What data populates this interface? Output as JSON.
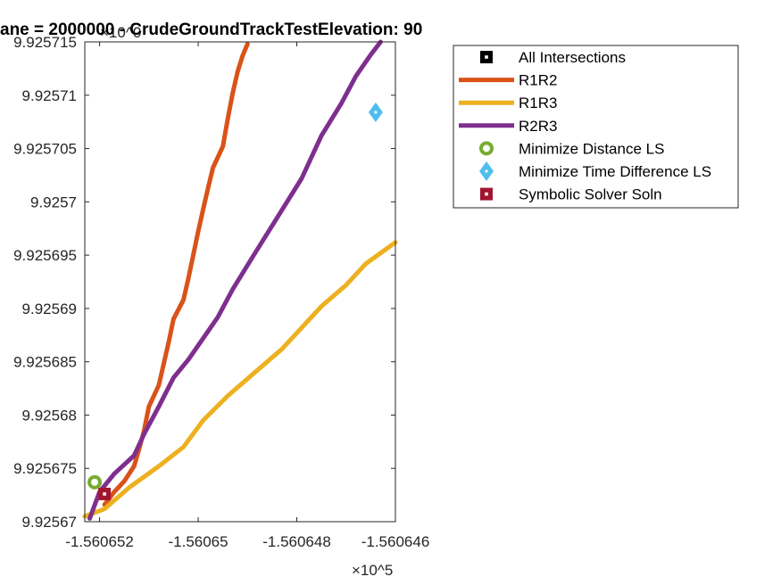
{
  "chart_data": {
    "type": "line",
    "title": "ane = 2000000 - CrudeGroundTrackTestElevation: 90",
    "xlabel": "",
    "ylabel": "",
    "xlim": [
      -1.5606523,
      -1.560646
    ],
    "ylim": [
      9.92567,
      9.925715
    ],
    "x_exponent_label": "×10^5",
    "y_exponent_label": "×10^0",
    "x_ticks": [
      {
        "value": -1.560652,
        "label": "-1.560652"
      },
      {
        "value": -1.56065,
        "label": "-1.56065"
      },
      {
        "value": -1.560648,
        "label": "-1.560648"
      },
      {
        "value": -1.560646,
        "label": "-1.560646"
      }
    ],
    "y_ticks": [
      {
        "value": 9.92567,
        "label": "9.92567"
      },
      {
        "value": 9.925675,
        "label": "9.925675"
      },
      {
        "value": 9.92568,
        "label": "9.92568"
      },
      {
        "value": 9.925685,
        "label": "9.925685"
      },
      {
        "value": 9.92569,
        "label": "9.92569"
      },
      {
        "value": 9.925695,
        "label": "9.925695"
      },
      {
        "value": 9.9257,
        "label": "9.9257"
      },
      {
        "value": 9.925705,
        "label": "9.925705"
      },
      {
        "value": 9.92571,
        "label": "9.92571"
      },
      {
        "value": 9.925715,
        "label": "9.925715"
      }
    ],
    "grid": false,
    "legend_position": "top-right outside",
    "series": [
      {
        "name": "R1R2",
        "kind": "line",
        "color": "#D95319",
        "points": [
          [
            -1.5606519,
            9.9256716
          ],
          [
            -1.5606517,
            9.9256728
          ],
          [
            -1.5606515,
            9.9256738
          ],
          [
            -1.5606513,
            9.9256752
          ],
          [
            -1.5606512,
            9.9256768
          ],
          [
            -1.5606511,
            9.9256785
          ],
          [
            -1.560651,
            9.9256808
          ],
          [
            -1.5606508,
            9.9256828
          ],
          [
            -1.5606507,
            9.9256848
          ],
          [
            -1.5606506,
            9.9256868
          ],
          [
            -1.5606505,
            9.925689
          ],
          [
            -1.5606503,
            9.9256908
          ],
          [
            -1.5606502,
            9.9256928
          ],
          [
            -1.5606501,
            9.925695
          ],
          [
            -1.56065,
            9.9256972
          ],
          [
            -1.5606499,
            9.9256993
          ],
          [
            -1.5606498,
            9.9257013
          ],
          [
            -1.5606497,
            9.9257032
          ],
          [
            -1.5606495,
            9.9257052
          ],
          [
            -1.5606494,
            9.9257078
          ],
          [
            -1.5606493,
            9.9257102
          ],
          [
            -1.5606492,
            9.9257122
          ],
          [
            -1.5606491,
            9.9257137
          ],
          [
            -1.560649,
            9.9257148
          ]
        ]
      },
      {
        "name": "R1R3",
        "kind": "line",
        "color": "#EDB120",
        "points": [
          [
            -1.5606523,
            9.9256705
          ],
          [
            -1.5606519,
            9.9256712
          ],
          [
            -1.5606514,
            9.9256732
          ],
          [
            -1.5606508,
            9.9256752
          ],
          [
            -1.5606503,
            9.925677
          ],
          [
            -1.5606499,
            9.9256795
          ],
          [
            -1.5606494,
            9.9256818
          ],
          [
            -1.5606488,
            9.9256842
          ],
          [
            -1.5606483,
            9.9256862
          ],
          [
            -1.5606479,
            9.9256882
          ],
          [
            -1.5606475,
            9.9256902
          ],
          [
            -1.560647,
            9.9256922
          ],
          [
            -1.5606466,
            9.9256942
          ],
          [
            -1.560646,
            9.9256962
          ]
        ]
      },
      {
        "name": "R2R3",
        "kind": "line",
        "color": "#7E2F8E",
        "points": [
          [
            -1.5606522,
            9.9256703
          ],
          [
            -1.560652,
            9.9256728
          ],
          [
            -1.5606517,
            9.9256745
          ],
          [
            -1.5606513,
            9.9256762
          ],
          [
            -1.5606511,
            9.9256782
          ],
          [
            -1.5606508,
            9.9256808
          ],
          [
            -1.5606505,
            9.9256835
          ],
          [
            -1.5606502,
            9.9256852
          ],
          [
            -1.5606499,
            9.9256872
          ],
          [
            -1.5606496,
            9.9256892
          ],
          [
            -1.5606493,
            9.9256918
          ],
          [
            -1.5606489,
            9.9256948
          ],
          [
            -1.5606484,
            9.9256985
          ],
          [
            -1.5606479,
            9.9257022
          ],
          [
            -1.5606475,
            9.9257062
          ],
          [
            -1.5606471,
            9.9257092
          ],
          [
            -1.5606468,
            9.9257118
          ],
          [
            -1.5606465,
            9.9257138
          ],
          [
            -1.5606463,
            9.925715
          ]
        ]
      },
      {
        "name": "All Intersections",
        "kind": "marker",
        "marker": "square",
        "color": "#000000",
        "points": []
      },
      {
        "name": "Minimize Distance LS",
        "kind": "marker",
        "marker": "circle",
        "color": "#77AC30",
        "points": [
          [
            -1.5606521,
            9.9256737
          ]
        ]
      },
      {
        "name": "Minimize Time Difference LS",
        "kind": "marker",
        "marker": "diamond",
        "color": "#4DBEEE",
        "points": [
          [
            -1.5606464,
            9.9257084
          ]
        ]
      },
      {
        "name": "Symbolic Solver Soln",
        "kind": "marker",
        "marker": "square",
        "color": "#A2142F",
        "points": [
          [
            -1.5606519,
            9.9256726
          ]
        ]
      }
    ],
    "legend": [
      {
        "label": "All Intersections",
        "kind": "marker",
        "marker": "square",
        "color": "#000000"
      },
      {
        "label": "R1R2",
        "kind": "line",
        "color": "#D95319"
      },
      {
        "label": "R1R3",
        "kind": "line",
        "color": "#EDB120"
      },
      {
        "label": "R2R3",
        "kind": "line",
        "color": "#7E2F8E"
      },
      {
        "label": "Minimize Distance LS",
        "kind": "marker",
        "marker": "circle",
        "color": "#77AC30"
      },
      {
        "label": "Minimize Time Difference LS",
        "kind": "marker",
        "marker": "diamond",
        "color": "#4DBEEE"
      },
      {
        "label": "Symbolic Solver Soln",
        "kind": "marker",
        "marker": "square",
        "color": "#A2142F"
      }
    ]
  }
}
